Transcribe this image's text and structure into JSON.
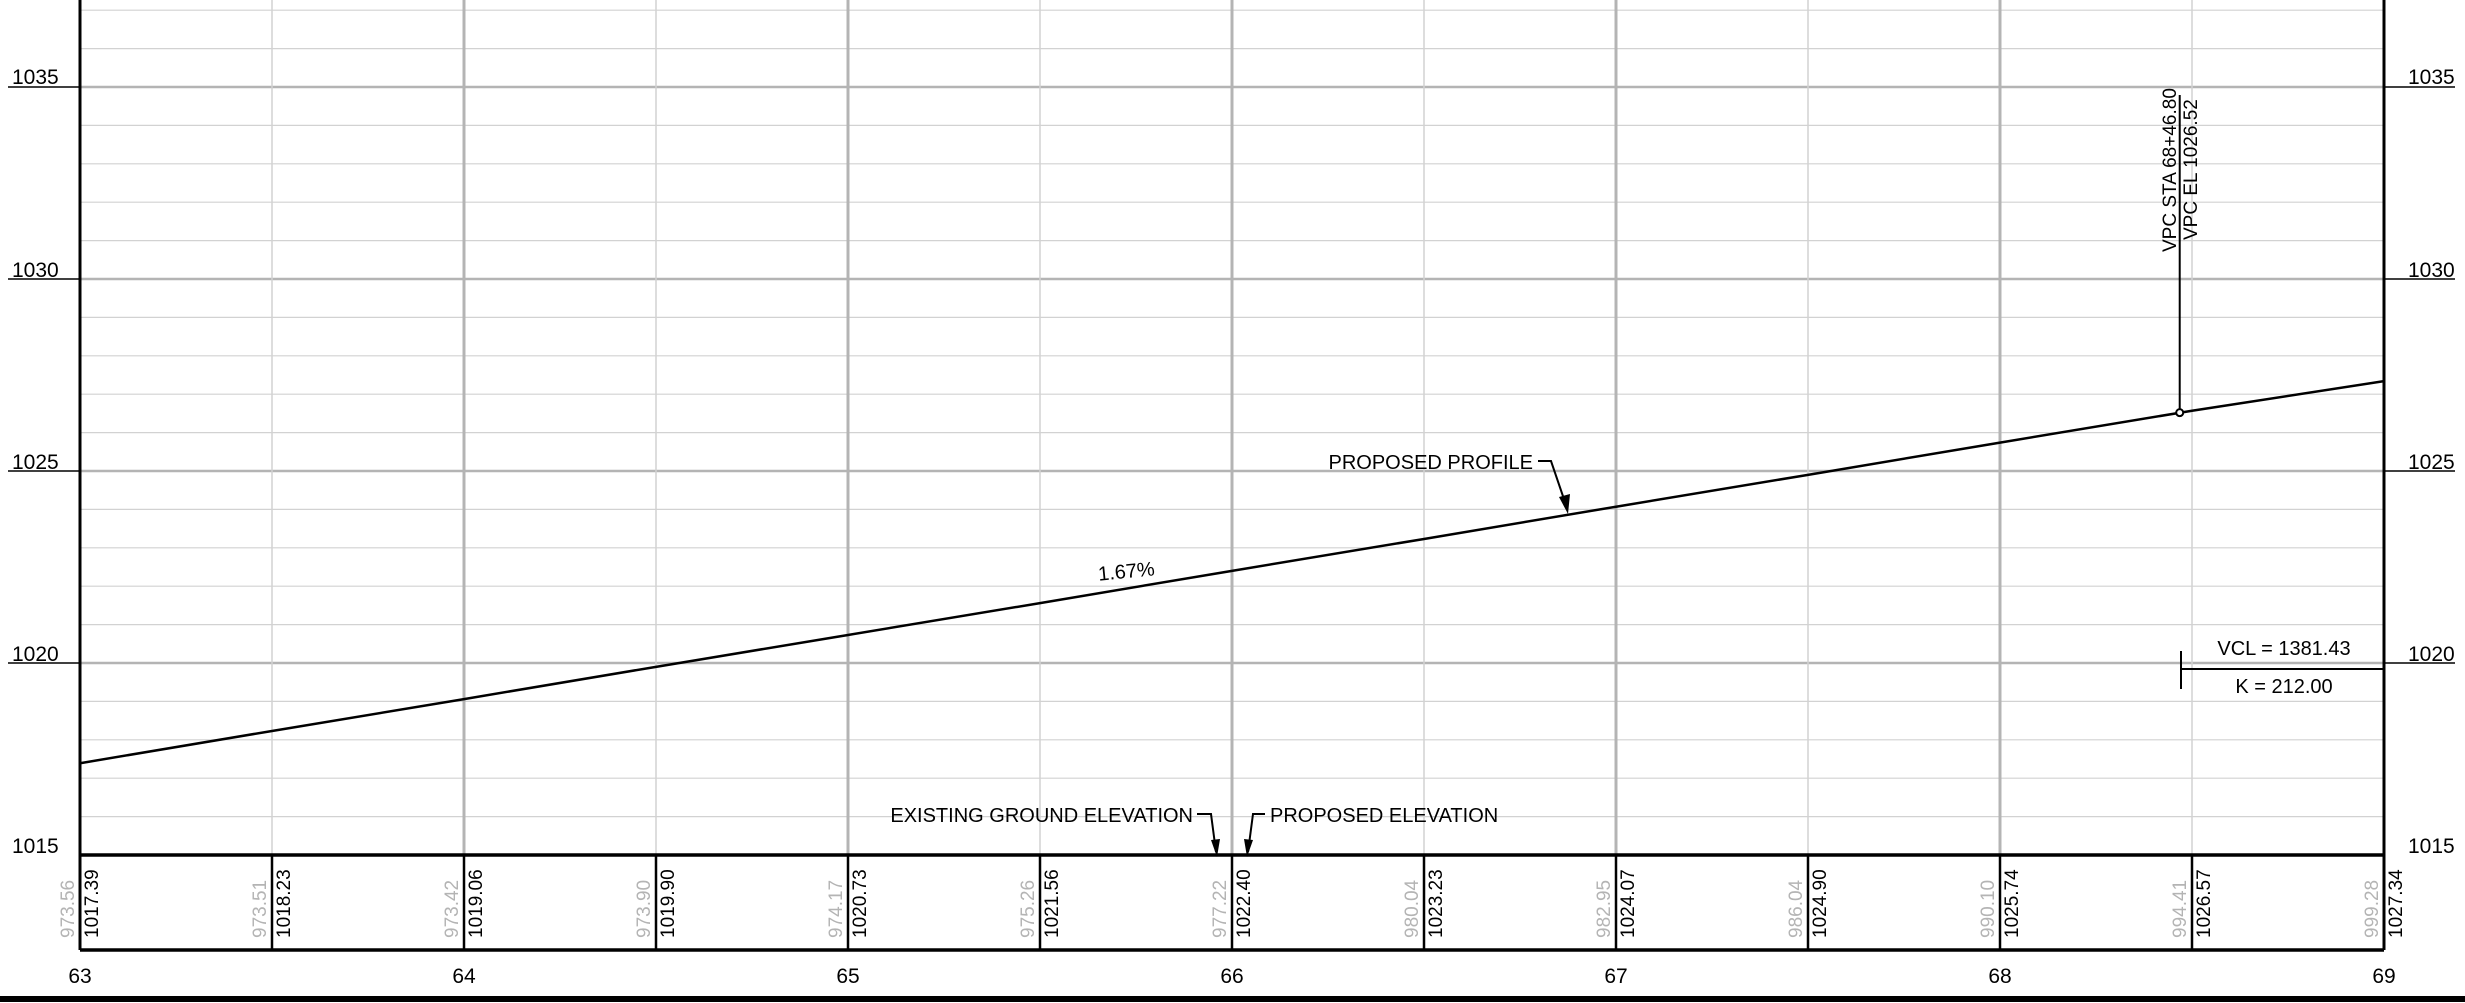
{
  "elevation_labels": {
    "e1015": "1015",
    "e1020": "1020",
    "e1025": "1025",
    "e1030": "1030",
    "e1035": "1035"
  },
  "station_labels": [
    "63",
    "64",
    "65",
    "66",
    "67",
    "68",
    "69"
  ],
  "data_band": [
    {
      "existing": "973.56",
      "proposed": "1017.39"
    },
    {
      "existing": "973.51",
      "proposed": "1018.23"
    },
    {
      "existing": "973.42",
      "proposed": "1019.06"
    },
    {
      "existing": "973.90",
      "proposed": "1019.90"
    },
    {
      "existing": "974.17",
      "proposed": "1020.73"
    },
    {
      "existing": "975.26",
      "proposed": "1021.56"
    },
    {
      "existing": "977.22",
      "proposed": "1022.40"
    },
    {
      "existing": "980.04",
      "proposed": "1023.23"
    },
    {
      "existing": "982.95",
      "proposed": "1024.07"
    },
    {
      "existing": "986.04",
      "proposed": "1024.90"
    },
    {
      "existing": "990.10",
      "proposed": "1025.74"
    },
    {
      "existing": "994.41",
      "proposed": "1026.57"
    },
    {
      "existing": "999.28",
      "proposed": "1027.34"
    }
  ],
  "annotations": {
    "grade": "1.67%",
    "proposed_profile": "PROPOSED PROFILE",
    "vpc_sta": "VPC STA 68+46.80",
    "vpc_el": "VPC EL 1026.52",
    "vcl": "VCL = 1381.43",
    "k_value": "K = 212.00",
    "existing_ground_elevation": "EXISTING GROUND ELEVATION",
    "proposed_elevation": "PROPOSED ELEVATION"
  },
  "chart_data": {
    "type": "line",
    "title": "",
    "xlabel": "",
    "ylabel": "",
    "xlim": [
      63,
      69
    ],
    "ylim": [
      1015,
      1035
    ],
    "grid": true,
    "series": [
      {
        "name": "PROPOSED PROFILE",
        "x": [
          63,
          63.5,
          64,
          64.5,
          65,
          65.5,
          66,
          66.5,
          67,
          67.5,
          68,
          68.5,
          69
        ],
        "y": [
          1017.39,
          1018.23,
          1019.06,
          1019.9,
          1020.73,
          1021.56,
          1022.4,
          1023.23,
          1024.07,
          1024.9,
          1025.74,
          1026.57,
          1027.34
        ]
      }
    ],
    "vpc": {
      "station": 68.468,
      "elevation": 1026.52
    },
    "colors": {
      "grid_major": "#b4b4b4",
      "grid_minor": "#d2d2d2",
      "line": "#000000",
      "existing_text": "#b4b4b4"
    }
  }
}
